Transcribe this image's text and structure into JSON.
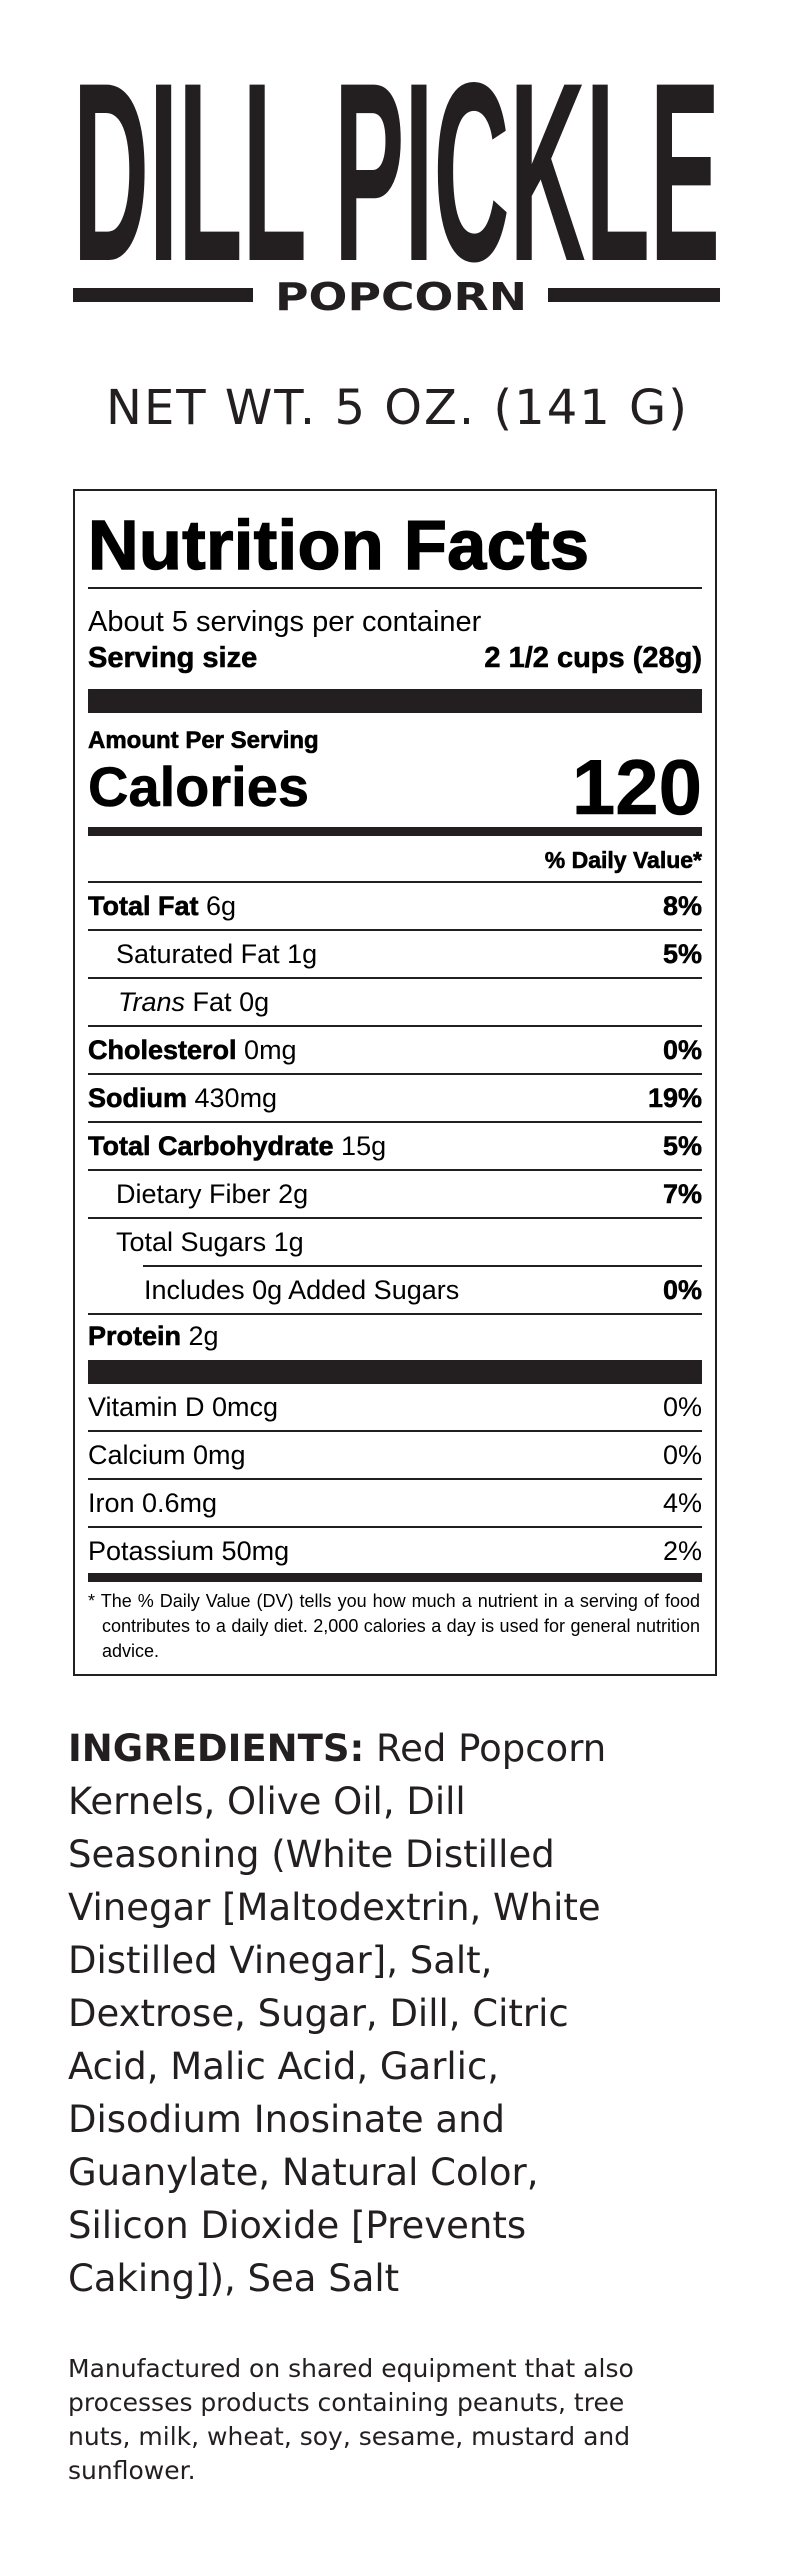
{
  "brand": {
    "name": "DILL PICKLE",
    "subtitle": "POPCORN"
  },
  "net_weight": "NET WT. 5 OZ. (141 G)",
  "nutrition": {
    "title": "Nutrition Facts",
    "servings_per_container": "About 5 servings per container",
    "serving_size_label": "Serving size",
    "serving_size_value": "2 1/2 cups (28g)",
    "amount_per_serving": "Amount Per Serving",
    "calories_label": "Calories",
    "calories_value": "120",
    "daily_value_header": "% Daily Value*",
    "nutrients": [
      {
        "name": "Total Fat",
        "amount": "6g",
        "dv": "8%"
      },
      {
        "name": "Saturated Fat",
        "amount": "1g",
        "dv": "5%"
      },
      {
        "name": "Trans",
        "name2": "Fat",
        "amount": "0g",
        "dv": ""
      },
      {
        "name": "Cholesterol",
        "amount": "0mg",
        "dv": "0%"
      },
      {
        "name": "Sodium",
        "amount": "430mg",
        "dv": "19%"
      },
      {
        "name": "Total Carbohydrate",
        "amount": "15g",
        "dv": "5%"
      },
      {
        "name": "Dietary Fiber",
        "amount": "2g",
        "dv": "7%"
      },
      {
        "name": "Total Sugars",
        "amount": "1g",
        "dv": ""
      },
      {
        "name": "Includes 0g Added Sugars",
        "amount": "",
        "dv": "0%"
      },
      {
        "name": "Protein",
        "amount": "2g",
        "dv": ""
      }
    ],
    "vitamins": [
      {
        "label": "Vitamin D 0mcg",
        "dv": "0%"
      },
      {
        "label": "Calcium 0mg",
        "dv": "0%"
      },
      {
        "label": "Iron 0.6mg",
        "dv": "4%"
      },
      {
        "label": "Potassium 50mg",
        "dv": "2%"
      }
    ],
    "footnote": "* The % Daily Value (DV) tells you how much a nutrient in a serving of food contributes to a daily diet. 2,000 calories a day is used for general nutrition advice."
  },
  "ingredients": {
    "label": "INGREDIENTS:",
    "lines": [
      " Red Popcorn",
      "Kernels, Olive Oil, Dill",
      "Seasoning (White Distilled",
      "Vinegar [Maltodextrin, White",
      "Distilled Vinegar], Salt,",
      "Dextrose, Sugar, Dill, Citric",
      "Acid, Malic Acid, Garlic,",
      "Disodium Inosinate and",
      "Guanylate, Natural Color,",
      "Silicon Dioxide [Prevents",
      "Caking]), Sea Salt"
    ]
  },
  "allergen": {
    "lines": [
      "Manufactured on shared equipment that also",
      "processes products containing peanuts, tree",
      "nuts, milk, wheat, soy, sesame, mustard and",
      "sunflower."
    ]
  },
  "colors": {
    "ink": "#231f20",
    "background": "#ffffff"
  }
}
